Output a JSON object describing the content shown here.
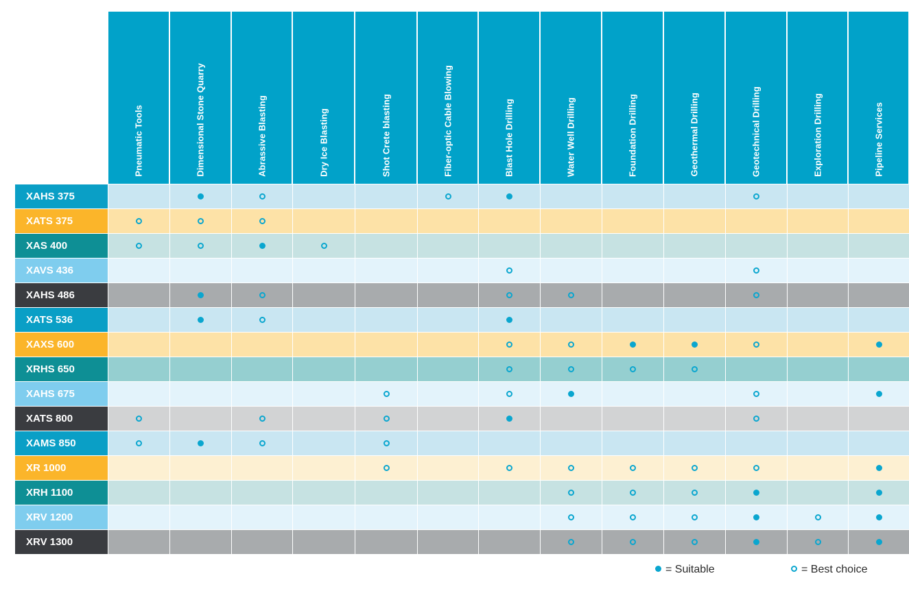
{
  "applications": [
    "Pneumatic Tools",
    "Dimensional Stone Quarry",
    "Abrassive Blasting",
    "Dry Ice Blasting",
    "Shot Crete blasting",
    "Fiber-optic Cable Blowing",
    "Blast Hole Drilling",
    "Water Well Drilling",
    "Foundation Drilling",
    "Geothermal Drilling",
    "Geotechnical  Drilling",
    "Exploration Drilling",
    "Pipeline Services"
  ],
  "models": [
    {
      "name": "XAHS 375",
      "label_color": "#0a9fc6",
      "row_color": "#c9e6f2",
      "cells": [
        "",
        "S",
        "B",
        "",
        "",
        "B",
        "S",
        "",
        "",
        "",
        "B",
        "",
        ""
      ]
    },
    {
      "name": "XATS 375",
      "label_color": "#fbb52a",
      "row_color": "#fde2a7",
      "cells": [
        "B",
        "B",
        "B",
        "",
        "",
        "",
        "",
        "",
        "",
        "",
        "",
        "",
        ""
      ]
    },
    {
      "name": "XAS 400",
      "label_color": "#0e8f95",
      "row_color": "#c6e2e2",
      "cells": [
        "B",
        "B",
        "S",
        "B",
        "",
        "",
        "",
        "",
        "",
        "",
        "",
        "",
        ""
      ]
    },
    {
      "name": "XAVS 436",
      "label_color": "#7fcdee",
      "row_color": "#e3f3fb",
      "cells": [
        "",
        "",
        "",
        "",
        "",
        "",
        "B",
        "",
        "",
        "",
        "B",
        "",
        ""
      ]
    },
    {
      "name": "XAHS 486",
      "label_color": "#3a3c40",
      "row_color": "#a8abad",
      "cells": [
        "",
        "S",
        "B",
        "",
        "",
        "",
        "B",
        "B",
        "",
        "",
        "B",
        "",
        ""
      ]
    },
    {
      "name": "XATS 536",
      "label_color": "#0a9fc6",
      "row_color": "#c9e6f2",
      "cells": [
        "",
        "S",
        "B",
        "",
        "",
        "",
        "S",
        "",
        "",
        "",
        "",
        "",
        ""
      ]
    },
    {
      "name": "XAXS 600",
      "label_color": "#fbb52a",
      "row_color": "#fde2a7",
      "cells": [
        "",
        "",
        "",
        "",
        "",
        "",
        "B",
        "B",
        "S",
        "S",
        "B",
        "",
        "S"
      ]
    },
    {
      "name": "XRHS 650",
      "label_color": "#0e8f95",
      "row_color": "#95cfd0",
      "cells": [
        "",
        "",
        "",
        "",
        "",
        "",
        "B",
        "B",
        "B",
        "B",
        "",
        "",
        ""
      ]
    },
    {
      "name": "XAHS 675",
      "label_color": "#7fcdee",
      "row_color": "#e3f3fb",
      "cells": [
        "",
        "",
        "",
        "",
        "B",
        "",
        "B",
        "S",
        "",
        "",
        "B",
        "",
        "S"
      ]
    },
    {
      "name": "XATS 800",
      "label_color": "#3a3c40",
      "row_color": "#d2d3d4",
      "cells": [
        "B",
        "",
        "B",
        "",
        "B",
        "",
        "S",
        "",
        "",
        "",
        "B",
        "",
        ""
      ]
    },
    {
      "name": "XAMS 850",
      "label_color": "#0a9fc6",
      "row_color": "#c9e6f2",
      "cells": [
        "B",
        "S",
        "B",
        "",
        "B",
        "",
        "",
        "",
        "",
        "",
        "",
        "",
        ""
      ]
    },
    {
      "name": "XR 1000",
      "label_color": "#fbb52a",
      "row_color": "#fdf0d2",
      "cells": [
        "",
        "",
        "",
        "",
        "B",
        "",
        "B",
        "B",
        "B",
        "B",
        "B",
        "",
        "S"
      ]
    },
    {
      "name": "XRH 1100",
      "label_color": "#0e8f95",
      "row_color": "#c6e2e2",
      "cells": [
        "",
        "",
        "",
        "",
        "",
        "",
        "",
        "B",
        "B",
        "B",
        "S",
        "",
        "S"
      ]
    },
    {
      "name": "XRV 1200",
      "label_color": "#7fcdee",
      "row_color": "#e3f3fb",
      "cells": [
        "",
        "",
        "",
        "",
        "",
        "",
        "",
        "B",
        "B",
        "B",
        "S",
        "B",
        "S"
      ]
    },
    {
      "name": "XRV 1300",
      "label_color": "#3a3c40",
      "row_color": "#a8abad",
      "cells": [
        "",
        "",
        "",
        "",
        "",
        "",
        "",
        "B",
        "B",
        "B",
        "S",
        "B",
        "S"
      ]
    }
  ],
  "legend": {
    "suitable_label": "= Suitable",
    "best_label": "= Best choice",
    "marker_color": "#0aa6cf"
  }
}
